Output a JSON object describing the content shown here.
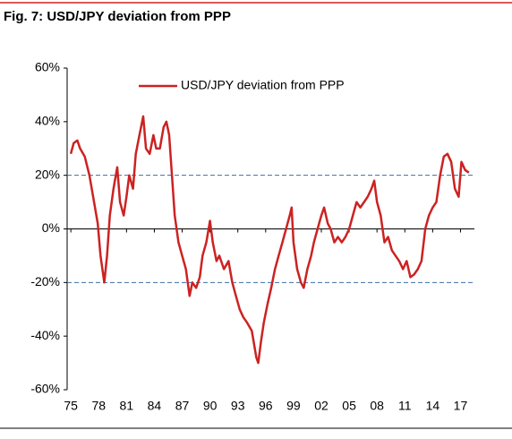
{
  "chart_data": {
    "type": "line",
    "title": "Fig. 7: USD/JPY deviation from PPP",
    "x": [
      1975.0,
      1975.3,
      1975.7,
      1976.0,
      1976.5,
      1977.0,
      1977.5,
      1977.9,
      1978.2,
      1978.6,
      1978.9,
      1979.2,
      1979.6,
      1980.0,
      1980.3,
      1980.7,
      1981.0,
      1981.3,
      1981.7,
      1982.0,
      1982.4,
      1982.8,
      1983.1,
      1983.5,
      1983.9,
      1984.2,
      1984.6,
      1985.0,
      1985.3,
      1985.6,
      1985.9,
      1986.2,
      1986.6,
      1987.0,
      1987.4,
      1987.8,
      1988.1,
      1988.5,
      1988.9,
      1989.2,
      1989.6,
      1990.0,
      1990.3,
      1990.7,
      1991.0,
      1991.5,
      1992.0,
      1992.4,
      1992.8,
      1993.2,
      1993.6,
      1994.0,
      1994.5,
      1995.0,
      1995.2,
      1995.5,
      1995.8,
      1996.2,
      1996.6,
      1997.0,
      1997.4,
      1997.8,
      1998.2,
      1998.6,
      1998.8,
      1999.0,
      1999.4,
      1999.8,
      2000.1,
      2000.5,
      2000.9,
      2001.2,
      2001.6,
      2002.0,
      2002.3,
      2002.7,
      2003.0,
      2003.4,
      2003.8,
      2004.2,
      2004.6,
      2005.0,
      2005.4,
      2005.8,
      2006.2,
      2006.6,
      2007.0,
      2007.4,
      2007.7,
      2008.0,
      2008.4,
      2008.8,
      2009.2,
      2009.6,
      2010.0,
      2010.4,
      2010.8,
      2011.2,
      2011.6,
      2012.0,
      2012.4,
      2012.8,
      2013.2,
      2013.6,
      2014.0,
      2014.4,
      2014.8,
      2015.2,
      2015.6,
      2016.0,
      2016.4,
      2016.8,
      2017.1,
      2017.5,
      2017.9
    ],
    "series": [
      {
        "name": "USD/JPY deviation from PPP",
        "color": "#cc2222",
        "values": [
          28,
          32,
          33,
          30,
          27,
          20,
          10,
          2,
          -10,
          -20,
          -10,
          5,
          15,
          23,
          10,
          5,
          12,
          20,
          15,
          28,
          35,
          42,
          30,
          28,
          35,
          30,
          30,
          38,
          40,
          35,
          20,
          5,
          -5,
          -10,
          -15,
          -25,
          -20,
          -22,
          -18,
          -10,
          -5,
          3,
          -5,
          -12,
          -10,
          -15,
          -12,
          -20,
          -25,
          -30,
          -33,
          -35,
          -38,
          -48,
          -50,
          -42,
          -35,
          -28,
          -22,
          -15,
          -10,
          -5,
          0,
          5,
          8,
          -5,
          -15,
          -20,
          -22,
          -15,
          -10,
          -5,
          0,
          5,
          8,
          2,
          0,
          -5,
          -3,
          -5,
          -3,
          0,
          5,
          10,
          8,
          10,
          12,
          15,
          18,
          10,
          5,
          -5,
          -3,
          -8,
          -10,
          -12,
          -15,
          -12,
          -18,
          -17,
          -15,
          -12,
          0,
          5,
          8,
          10,
          20,
          27,
          28,
          25,
          15,
          12,
          25,
          22,
          21
        ]
      }
    ],
    "xlim": [
      1974.6,
      2018.5
    ],
    "xticks": [
      {
        "value": 1975,
        "label": "75"
      },
      {
        "value": 1978,
        "label": "78"
      },
      {
        "value": 1981,
        "label": "81"
      },
      {
        "value": 1984,
        "label": "84"
      },
      {
        "value": 1987,
        "label": "87"
      },
      {
        "value": 1990,
        "label": "90"
      },
      {
        "value": 1993,
        "label": "93"
      },
      {
        "value": 1996,
        "label": "96"
      },
      {
        "value": 1999,
        "label": "99"
      },
      {
        "value": 2002,
        "label": "02"
      },
      {
        "value": 2005,
        "label": "05"
      },
      {
        "value": 2008,
        "label": "08"
      },
      {
        "value": 2011,
        "label": "11"
      },
      {
        "value": 2014,
        "label": "14"
      },
      {
        "value": 2017,
        "label": "17"
      }
    ],
    "ylim": [
      -60,
      60
    ],
    "yticks": [
      {
        "value": -60,
        "label": "-60%"
      },
      {
        "value": -40,
        "label": "-40%"
      },
      {
        "value": -20,
        "label": "-20%"
      },
      {
        "value": 0,
        "label": "0%"
      },
      {
        "value": 20,
        "label": "20%"
      },
      {
        "value": 40,
        "label": "40%"
      },
      {
        "value": 60,
        "label": "60%"
      }
    ],
    "reference_lines": [
      20,
      -20
    ],
    "legend": "top"
  }
}
